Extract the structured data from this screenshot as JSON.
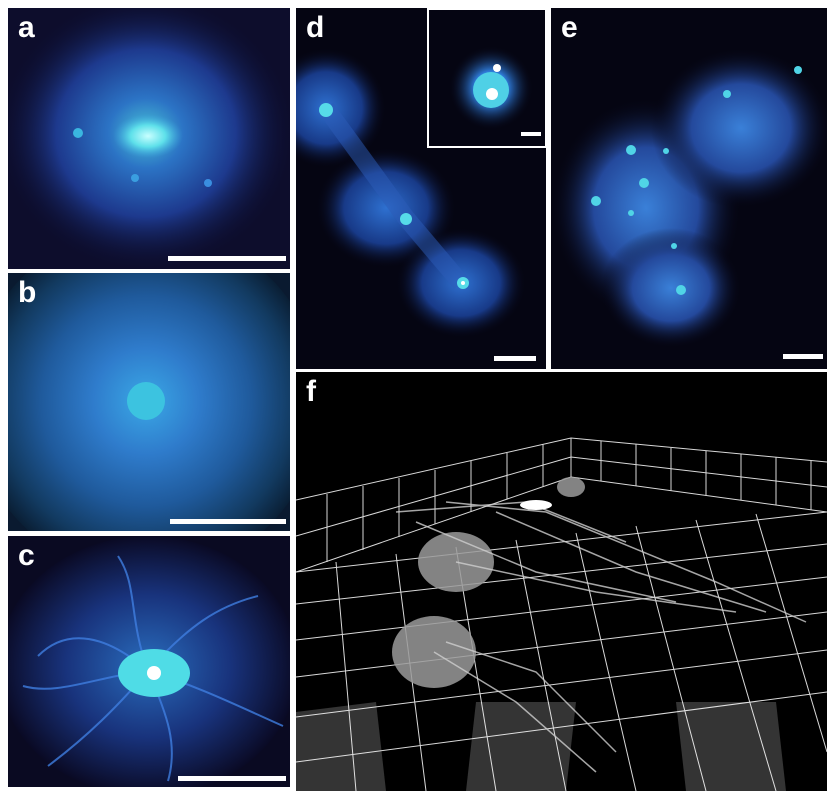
{
  "panels": {
    "a": {
      "label": "a"
    },
    "b": {
      "label": "b"
    },
    "c": {
      "label": "c"
    },
    "d": {
      "label": "d"
    },
    "e": {
      "label": "e"
    },
    "f": {
      "label": "f"
    }
  },
  "colors": {
    "background": "#000000",
    "glow_blue": "#2a63c8",
    "core_cyan": "#46d6e6",
    "bright_core": "#ffffff",
    "grid": "#ffffff",
    "fiber_gray": "#c8c8c8"
  }
}
